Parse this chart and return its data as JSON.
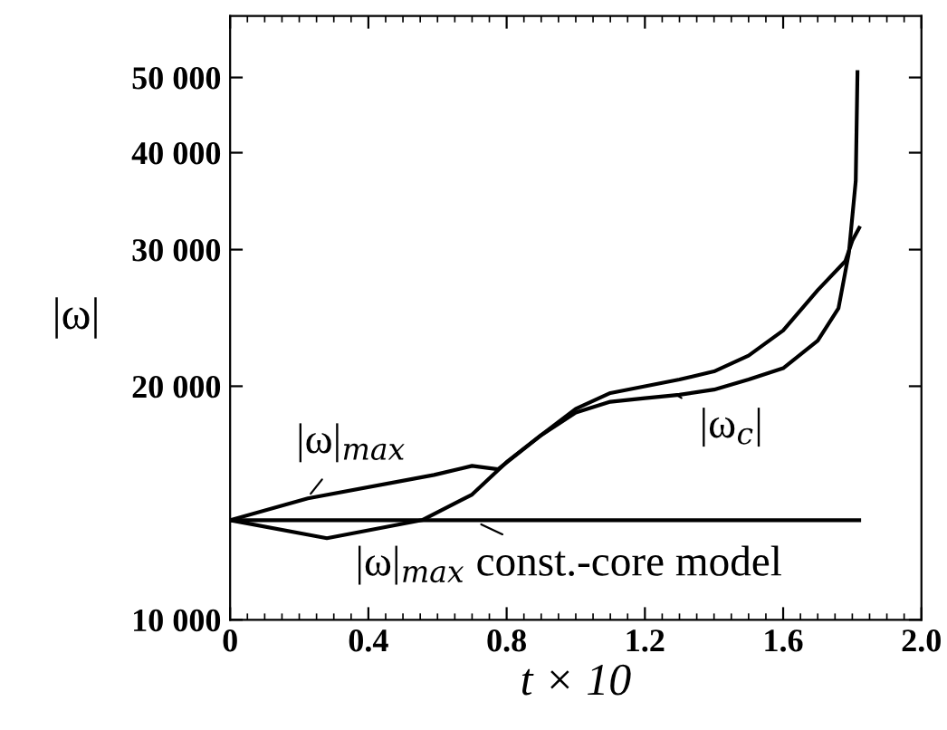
{
  "chart_data": {
    "type": "line",
    "xlabel": "t × 10",
    "ylabel": "|ω|",
    "log": "y",
    "xlim": [
      0,
      2.0
    ],
    "xticks": [
      {
        "value": 0,
        "label": "0"
      },
      0.4,
      0.8,
      1.2,
      1.6,
      {
        "value": 2.0,
        "label": "2.0"
      }
    ],
    "ylim": [
      10000,
      60000
    ],
    "yticks": [
      {
        "value": 10000,
        "label": "10 000"
      },
      {
        "value": 20000,
        "label": "20 000"
      },
      {
        "value": 30000,
        "label": "30 000"
      },
      {
        "value": 40000,
        "label": "40 000"
      },
      {
        "value": 50000,
        "label": "50 000"
      }
    ],
    "grid": false,
    "legend": false,
    "marker": "none",
    "line_style": "solid",
    "series": [
      {
        "color": "#000000",
        "x": [
          0,
          0.225,
          0.59,
          0.7,
          0.775,
          0.9,
          1.0,
          1.1,
          1.2,
          1.3,
          1.4,
          1.5,
          1.6,
          1.7,
          1.78,
          1.8,
          1.82
        ],
        "values": [
          13440,
          14340,
          15370,
          15790,
          15630,
          17300,
          18700,
          19600,
          20000,
          20400,
          20900,
          21900,
          23600,
          26600,
          29000,
          30800,
          32000
        ]
      },
      {
        "color": "#000000",
        "x": [
          0,
          0.28,
          0.555,
          0.7,
          0.8,
          0.9,
          1.0,
          1.1,
          1.2,
          1.3,
          1.4,
          1.5,
          1.6,
          1.7,
          1.76,
          1.79,
          1.81,
          1.815
        ],
        "values": [
          13440,
          12740,
          13440,
          14500,
          15970,
          17300,
          18500,
          19100,
          19300,
          19500,
          19800,
          20400,
          21100,
          22900,
          25200,
          29700,
          36800,
          50800
        ]
      },
      {
        "color": "#000000",
        "x": [
          0,
          1.82
        ],
        "values": [
          13440,
          13440
        ]
      }
    ],
    "annotations": [
      {
        "text": "|ω|$_{max}$",
        "x": 0.215,
        "y": 14200
      },
      {
        "text": "|ω$_{c}$|",
        "x": 1.29,
        "y": 19500
      },
      {
        "text": "|ω|$_{max}$ const.-core model",
        "x": 0.7,
        "y": 13440
      }
    ]
  }
}
